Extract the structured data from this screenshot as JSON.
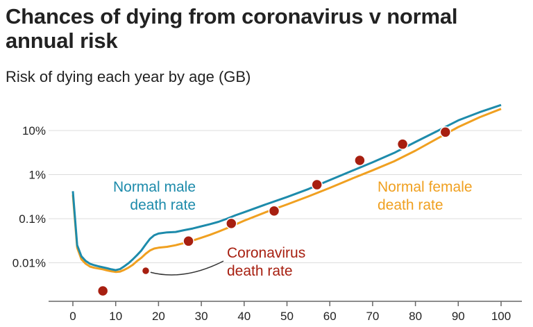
{
  "chart_data": {
    "type": "line",
    "title": "Chances of dying from coronavirus v normal annual risk",
    "subtitle": "Risk of dying each year by age (GB)",
    "xlabel": "",
    "ylabel": "",
    "y_scale": "log",
    "x_ticks": [
      "0",
      "10",
      "20",
      "30",
      "40",
      "50",
      "60",
      "70",
      "80",
      "90",
      "100"
    ],
    "y_ticks": [
      {
        "label": "10%",
        "value": 10
      },
      {
        "label": "1%",
        "value": 1
      },
      {
        "label": "0.1%",
        "value": 0.1
      },
      {
        "label": "0.01%",
        "value": 0.01
      }
    ],
    "xlim": [
      -5,
      103
    ],
    "ylim": [
      0.0025,
      40
    ],
    "grid": "horizontal",
    "colors": {
      "male": "#1d8bab",
      "female": "#f0a020",
      "covid": "#a71f10",
      "text": "#222222",
      "grid": "#dcdcdc"
    },
    "series": [
      {
        "name": "Normal male death rate",
        "label_lines": [
          "Normal male",
          "death rate"
        ],
        "x": [
          0,
          1,
          2,
          3,
          4,
          5,
          6,
          7,
          8,
          9,
          10,
          11,
          12,
          13,
          14,
          15,
          16,
          17,
          18,
          19,
          20,
          22,
          24,
          26,
          28,
          30,
          32,
          34,
          36,
          38,
          40,
          45,
          50,
          55,
          60,
          65,
          70,
          75,
          80,
          85,
          90,
          95,
          100
        ],
        "values": [
          0.42,
          0.025,
          0.014,
          0.011,
          0.0095,
          0.0088,
          0.0083,
          0.0079,
          0.0075,
          0.0071,
          0.0068,
          0.0072,
          0.0083,
          0.0098,
          0.012,
          0.015,
          0.019,
          0.026,
          0.035,
          0.042,
          0.046,
          0.049,
          0.05,
          0.055,
          0.06,
          0.067,
          0.075,
          0.085,
          0.1,
          0.12,
          0.14,
          0.21,
          0.31,
          0.47,
          0.75,
          1.2,
          1.9,
          3.1,
          5.5,
          9.6,
          17,
          26,
          38
        ]
      },
      {
        "name": "Normal female death rate",
        "label_lines": [
          "Normal female",
          "death rate"
        ],
        "x": [
          0,
          1,
          2,
          3,
          4,
          5,
          6,
          7,
          8,
          9,
          10,
          11,
          12,
          13,
          14,
          15,
          16,
          17,
          18,
          19,
          20,
          22,
          24,
          26,
          28,
          30,
          32,
          34,
          36,
          38,
          40,
          45,
          50,
          55,
          60,
          65,
          70,
          75,
          80,
          85,
          90,
          95,
          100
        ],
        "values": [
          0.35,
          0.022,
          0.012,
          0.0095,
          0.0082,
          0.0077,
          0.0074,
          0.0071,
          0.0067,
          0.0064,
          0.0062,
          0.0063,
          0.0069,
          0.0078,
          0.009,
          0.011,
          0.013,
          0.016,
          0.019,
          0.021,
          0.022,
          0.023,
          0.025,
          0.028,
          0.032,
          0.037,
          0.043,
          0.051,
          0.061,
          0.074,
          0.09,
          0.14,
          0.21,
          0.32,
          0.5,
          0.8,
          1.25,
          2.0,
          3.5,
          6.5,
          12,
          20,
          31
        ]
      },
      {
        "name": "Coronavirus death rate",
        "label_lines": [
          "Coronavirus",
          "death rate"
        ],
        "x": [
          7,
          27,
          37,
          47,
          57,
          67,
          77,
          87
        ],
        "values": [
          0.0023,
          0.031,
          0.078,
          0.15,
          0.59,
          2.1,
          4.9,
          9.2
        ]
      }
    ]
  }
}
